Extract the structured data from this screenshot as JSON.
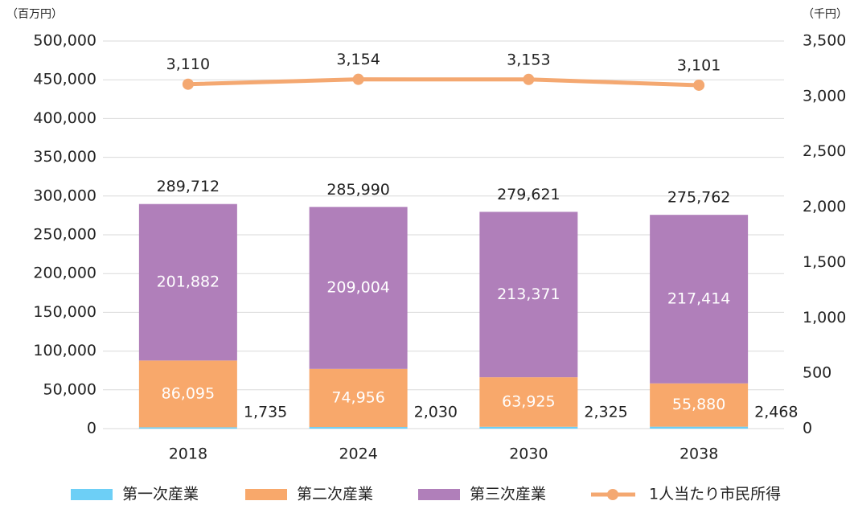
{
  "chart_data": {
    "type": "bar",
    "stacked": true,
    "y_unit_label": "（百万円）",
    "y2_unit_label": "（千円）",
    "categories": [
      "2018",
      "2024",
      "2030",
      "2038"
    ],
    "series": [
      {
        "name": "第一次産業",
        "color": "#6dcff6",
        "values": [
          1735,
          2030,
          2325,
          2468
        ],
        "value_labels": [
          "1,735",
          "2,030",
          "2,325",
          "2,468"
        ]
      },
      {
        "name": "第二次産業",
        "color": "#f8a86b",
        "values": [
          86095,
          74956,
          63925,
          55880
        ],
        "value_labels": [
          "86,095",
          "74,956",
          "63,925",
          "55,880"
        ]
      },
      {
        "name": "第三次産業",
        "color": "#b07fba",
        "values": [
          201882,
          209004,
          213371,
          217414
        ],
        "value_labels": [
          "201,882",
          "209,004",
          "213,371",
          "217,414"
        ]
      },
      {
        "name": "1人当たり市民所得",
        "color": "#f4a871",
        "type": "line",
        "axis": "y2",
        "values": [
          3110,
          3154,
          3153,
          3101
        ],
        "value_labels": [
          "3,110",
          "3,154",
          "3,153",
          "3,101"
        ]
      }
    ],
    "totals": [
      289712,
      285990,
      279621,
      275762
    ],
    "total_labels": [
      "289,712",
      "285,990",
      "279,621",
      "275,762"
    ],
    "ylim": [
      0,
      500000
    ],
    "yticks": [
      0,
      {
        "value": 50000,
        "label": "50,000"
      },
      {
        "value": 100000,
        "label": "100,000"
      },
      {
        "value": 150000,
        "label": "150,000"
      },
      {
        "value": 200000,
        "label": "200,000"
      },
      {
        "value": 250000,
        "label": "250,000"
      },
      {
        "value": 300000,
        "label": "300,000"
      },
      {
        "value": 350000,
        "label": "350,000"
      },
      {
        "value": 400000,
        "label": "400,000"
      },
      {
        "value": 450000,
        "label": "450,000"
      },
      {
        "value": 500000,
        "label": "500,000"
      }
    ],
    "y2lim": [
      0,
      3500
    ],
    "y2ticks": [
      0,
      500,
      {
        "value": 1000,
        "label": "1,000"
      },
      {
        "value": 1500,
        "label": "1,500"
      },
      {
        "value": 2000,
        "label": "2,000"
      },
      {
        "value": 2500,
        "label": "2,500"
      },
      {
        "value": 3000,
        "label": "3,000"
      },
      {
        "value": 3500,
        "label": "3,500"
      }
    ],
    "grid": true,
    "legend": "bottom"
  }
}
